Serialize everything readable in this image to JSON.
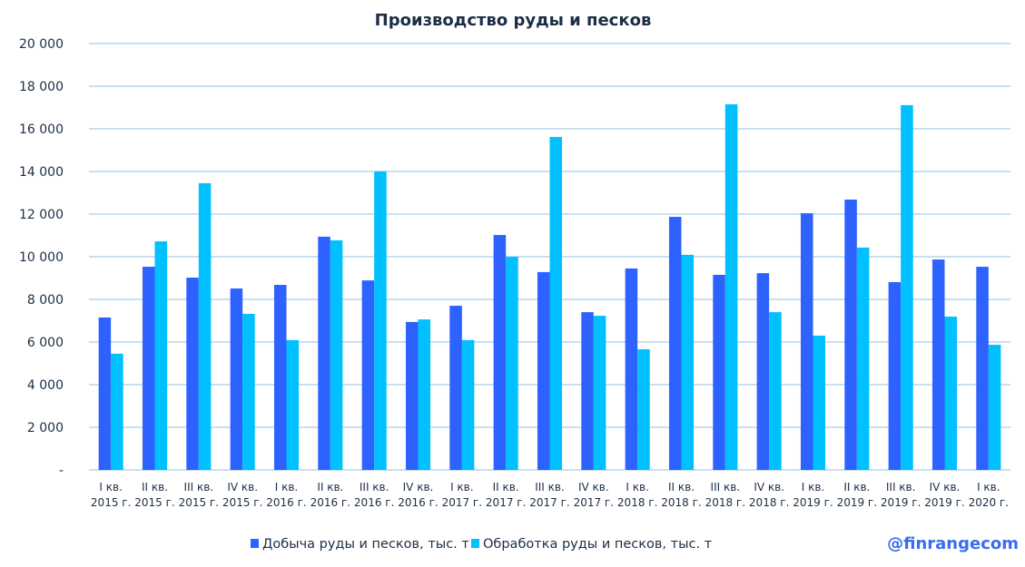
{
  "colors": {
    "series_mining": "#2E62FF",
    "series_processing": "#00C0FF",
    "gridline": "#C9E0F2",
    "text": "#1C2E45",
    "watermark": "#3A6CF0"
  },
  "watermark": "@finrangecom",
  "chart_data": {
    "type": "bar",
    "title": "Производство руды и песков",
    "xlabel": "",
    "ylabel": "",
    "ylim": [
      0,
      20000
    ],
    "yticks": [
      0,
      2000,
      4000,
      6000,
      8000,
      10000,
      12000,
      14000,
      16000,
      18000,
      20000
    ],
    "ytick_labels": [
      "-",
      "2 000",
      "4 000",
      "6 000",
      "8 000",
      "10 000",
      "12 000",
      "14 000",
      "16 000",
      "18 000",
      "20 000"
    ],
    "grid": true,
    "legend_position": "bottom",
    "categories": [
      [
        "I кв.",
        "2015 г."
      ],
      [
        "II кв.",
        "2015  г."
      ],
      [
        "III кв.",
        "2015 г."
      ],
      [
        "IV кв.",
        "2015 г."
      ],
      [
        "I кв.",
        "2016 г."
      ],
      [
        "II кв.",
        "2016  г."
      ],
      [
        "III кв.",
        "2016 г."
      ],
      [
        "IV кв.",
        "2016 г."
      ],
      [
        "I кв.",
        "2017 г."
      ],
      [
        "II кв.",
        "2017  г."
      ],
      [
        "III кв.",
        "2017 г."
      ],
      [
        "IV кв.",
        "2017 г."
      ],
      [
        "I кв.",
        "2018 г."
      ],
      [
        "II кв.",
        "2018  г."
      ],
      [
        "III кв.",
        "2018 г."
      ],
      [
        "IV кв.",
        "2018 г."
      ],
      [
        "I кв.",
        "2019 г."
      ],
      [
        "II кв.",
        "2019 г."
      ],
      [
        "III кв.",
        "2019 г."
      ],
      [
        "IV кв.",
        "2019 г."
      ],
      [
        "I кв.",
        "2020 г."
      ]
    ],
    "series": [
      {
        "name": "Добыча руды и песков, тыс. т",
        "values": [
          7150,
          9530,
          9020,
          8510,
          8680,
          10940,
          8890,
          6940,
          7700,
          11020,
          9280,
          7400,
          9450,
          11870,
          9150,
          9230,
          12040,
          12680,
          8810,
          9870,
          9530
        ]
      },
      {
        "name": "Обработка руды и песков, тыс. т",
        "values": [
          5450,
          10720,
          13450,
          7320,
          6090,
          10770,
          14000,
          7060,
          6090,
          10000,
          15620,
          7230,
          5660,
          10090,
          17150,
          7400,
          6300,
          10430,
          17110,
          7190,
          5870
        ]
      }
    ]
  }
}
